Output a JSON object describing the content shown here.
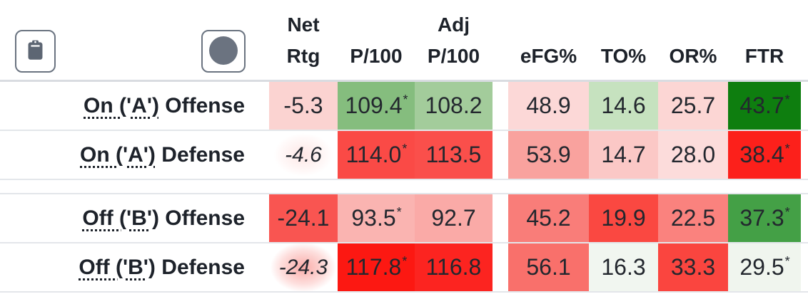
{
  "toolbar": {
    "copy_button": {
      "icon": "clipboard-icon"
    },
    "record_button": {
      "icon": "circle-icon"
    }
  },
  "table": {
    "column_headers": [
      "Net Rtg",
      "P/100",
      "Adj P/100",
      "eFG%",
      "TO%",
      "OR%",
      "FTR"
    ],
    "rows": [
      {
        "label_term": "On ('A')",
        "label_rest": "Offense",
        "net_rtg": {
          "value": "-5.3",
          "bg": "#fbd3d1"
        },
        "p100": {
          "value": "109.4",
          "sup": "*",
          "bg": "#85bd7e"
        },
        "adj_p100": {
          "value": "108.2",
          "bg": "#a3cc9b"
        },
        "efg": {
          "value": "48.9",
          "bg": "#fcd8d7"
        },
        "to": {
          "value": "14.6",
          "bg": "#c6e2bf"
        },
        "or": {
          "value": "25.7",
          "bg": "#fcd6d4"
        },
        "ftr": {
          "value": "43.7",
          "sup": "*",
          "bg": "#0e7e0f"
        }
      },
      {
        "label_term": "On ('A')",
        "label_rest": "Defense",
        "net_rtg": {
          "value": "-4.6",
          "italic": true,
          "glow": "faint"
        },
        "p100": {
          "value": "114.0",
          "sup": "*",
          "bg": "#fa4a46"
        },
        "adj_p100": {
          "value": "113.5",
          "bg": "#fa4f4b"
        },
        "efg": {
          "value": "53.9",
          "bg": "#f9a29e"
        },
        "to": {
          "value": "14.7",
          "bg": "#fbc8c6"
        },
        "or": {
          "value": "28.0",
          "bg": "#fcdcdb"
        },
        "ftr": {
          "value": "38.4",
          "sup": "*",
          "bg": "#fc201b"
        }
      },
      {
        "group_gap_before": true,
        "label_term": "Off ('B')",
        "label_rest": "Offense",
        "net_rtg": {
          "value": "-24.1",
          "bg": "#f95551"
        },
        "p100": {
          "value": "93.5",
          "sup": "*",
          "bg": "#fab4b1"
        },
        "adj_p100": {
          "value": "92.7",
          "bg": "#faaaa7"
        },
        "efg": {
          "value": "45.2",
          "bg": "#f97d79"
        },
        "to": {
          "value": "19.9",
          "bg": "#fa4841"
        },
        "or": {
          "value": "22.5",
          "bg": "#fa827e"
        },
        "ftr": {
          "value": "37.3",
          "sup": "*",
          "bg": "#44a046"
        }
      },
      {
        "label_term": "Off ('B')",
        "label_rest": "Defense",
        "net_rtg": {
          "value": "-24.3",
          "italic": true,
          "glow": "strong"
        },
        "p100": {
          "value": "117.8",
          "sup": "*",
          "bg": "#fc1812"
        },
        "adj_p100": {
          "value": "116.8",
          "bg": "#fc2420"
        },
        "efg": {
          "value": "56.1",
          "bg": "#f9706b"
        },
        "to": {
          "value": "16.3",
          "bg": "#f1f6f0"
        },
        "or": {
          "value": "33.3",
          "bg": "#fa453f"
        },
        "ftr": {
          "value": "29.5",
          "sup": "*",
          "bg": "#f0f5ee"
        }
      }
    ]
  },
  "colors": {
    "text": "#22262d",
    "row_border": "#e3e6ea",
    "header_border": "#d9dce1",
    "button_border": "#6a7380",
    "icon_fill": "#5d6673",
    "circle_fill": "#6b7380"
  }
}
